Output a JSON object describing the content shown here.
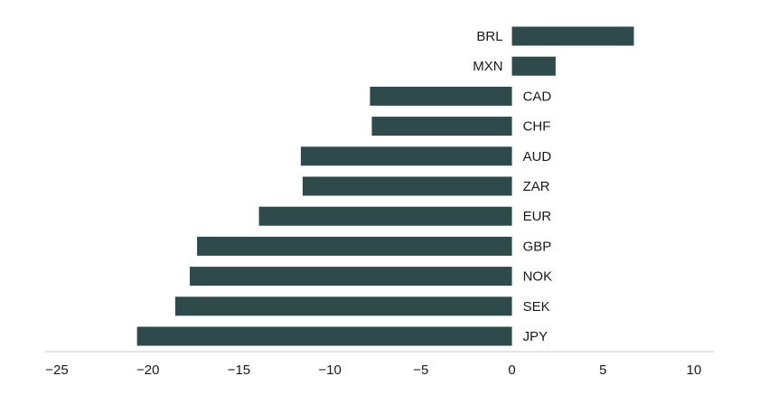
{
  "chart_data": {
    "type": "bar",
    "orientation": "horizontal",
    "title": "",
    "xlabel": "",
    "ylabel": "",
    "categories": [
      "BRL",
      "MXN",
      "CAD",
      "CHF",
      "AUD",
      "ZAR",
      "EUR",
      "GBP",
      "NOK",
      "SEK",
      "JPY"
    ],
    "values": [
      6.7,
      2.4,
      -7.8,
      -7.7,
      -11.6,
      -11.5,
      -13.9,
      -17.3,
      -17.7,
      -18.5,
      -20.6
    ],
    "xlim": [
      -25,
      10
    ],
    "xticks": [
      "−25",
      "−20",
      "−15",
      "−10",
      "−5",
      "0",
      "5",
      "10"
    ],
    "grid": false,
    "legend": "none",
    "bar_color": "#2e4a4a"
  }
}
